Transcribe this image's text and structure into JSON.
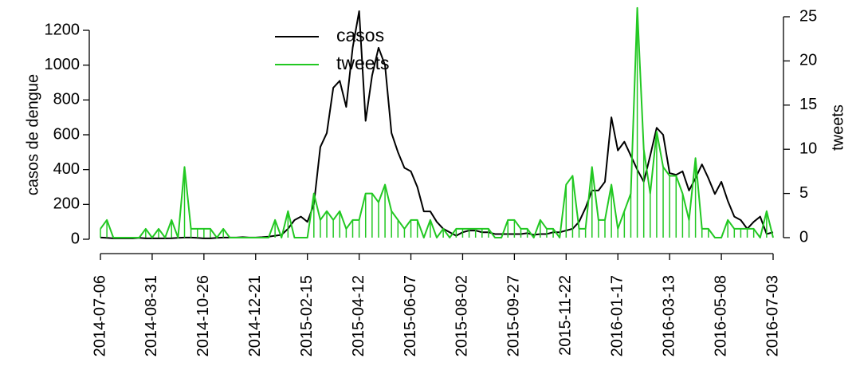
{
  "chart_data": {
    "type": "line",
    "x": [
      "2014-07-06",
      "2014-07-13",
      "2014-07-20",
      "2014-07-27",
      "2014-08-03",
      "2014-08-10",
      "2014-08-17",
      "2014-08-24",
      "2014-08-31",
      "2014-09-07",
      "2014-09-14",
      "2014-09-21",
      "2014-09-28",
      "2014-10-05",
      "2014-10-12",
      "2014-10-19",
      "2014-10-26",
      "2014-11-02",
      "2014-11-09",
      "2014-11-16",
      "2014-11-23",
      "2014-11-30",
      "2014-12-07",
      "2014-12-14",
      "2014-12-21",
      "2014-12-28",
      "2015-01-04",
      "2015-01-11",
      "2015-01-18",
      "2015-01-25",
      "2015-02-01",
      "2015-02-08",
      "2015-02-15",
      "2015-02-22",
      "2015-03-01",
      "2015-03-08",
      "2015-03-15",
      "2015-03-22",
      "2015-03-29",
      "2015-04-05",
      "2015-04-12",
      "2015-04-19",
      "2015-04-26",
      "2015-05-03",
      "2015-05-10",
      "2015-05-17",
      "2015-05-24",
      "2015-05-31",
      "2015-06-07",
      "2015-06-14",
      "2015-06-21",
      "2015-06-28",
      "2015-07-05",
      "2015-07-12",
      "2015-07-19",
      "2015-07-26",
      "2015-08-02",
      "2015-08-09",
      "2015-08-16",
      "2015-08-23",
      "2015-08-30",
      "2015-09-06",
      "2015-09-13",
      "2015-09-20",
      "2015-09-27",
      "2015-10-04",
      "2015-10-11",
      "2015-10-18",
      "2015-10-25",
      "2015-11-01",
      "2015-11-08",
      "2015-11-15",
      "2015-11-22",
      "2015-11-29",
      "2015-12-06",
      "2015-12-13",
      "2015-12-20",
      "2015-12-27",
      "2016-01-03",
      "2016-01-10",
      "2016-01-17",
      "2016-01-24",
      "2016-01-31",
      "2016-02-07",
      "2016-02-14",
      "2016-02-21",
      "2016-02-28",
      "2016-03-06",
      "2016-03-13",
      "2016-03-20",
      "2016-03-27",
      "2016-04-03",
      "2016-04-10",
      "2016-04-17",
      "2016-04-24",
      "2016-05-01",
      "2016-05-08",
      "2016-05-15",
      "2016-05-22",
      "2016-05-29",
      "2016-06-05",
      "2016-06-12",
      "2016-06-19",
      "2016-06-26",
      "2016-07-03"
    ],
    "xticks": [
      "2014-07-06",
      "2014-08-31",
      "2014-10-26",
      "2014-12-21",
      "2015-02-15",
      "2015-04-12",
      "2015-06-07",
      "2015-08-02",
      "2015-09-27",
      "2015-11-22",
      "2016-01-17",
      "2016-03-13",
      "2016-05-08",
      "2016-07-03"
    ],
    "ylabel": "casos de dengue",
    "y2label": "tweets",
    "ylim": [
      0,
      1200
    ],
    "yticks": [
      0,
      200,
      400,
      600,
      800,
      1000,
      1200
    ],
    "y2lim": [
      0,
      25
    ],
    "y2ticks": [
      0,
      5,
      10,
      15,
      20,
      25
    ],
    "legend": "top",
    "series": [
      {
        "name": "casos",
        "color": "#000000",
        "axis": "y",
        "values": [
          10,
          8,
          5,
          5,
          6,
          5,
          8,
          5,
          5,
          5,
          5,
          6,
          8,
          10,
          10,
          8,
          5,
          5,
          8,
          10,
          10,
          10,
          12,
          10,
          10,
          12,
          15,
          20,
          25,
          60,
          110,
          130,
          100,
          200,
          530,
          610,
          870,
          910,
          760,
          1100,
          1310,
          680,
          940,
          1100,
          1000,
          610,
          500,
          410,
          390,
          300,
          160,
          160,
          100,
          60,
          40,
          20,
          40,
          50,
          50,
          40,
          40,
          30,
          30,
          30,
          30,
          30,
          35,
          25,
          30,
          30,
          40,
          40,
          50,
          60,
          100,
          180,
          280,
          280,
          330,
          700,
          510,
          560,
          480,
          400,
          330,
          480,
          640,
          600,
          380,
          370,
          390,
          280,
          350,
          430,
          350,
          260,
          330,
          220,
          130,
          110,
          60,
          100,
          130,
          30,
          40
        ]
      },
      {
        "name": "tweets",
        "color": "#22c822",
        "axis": "y2",
        "values": [
          1,
          2,
          0,
          0,
          0,
          0,
          0,
          1,
          0,
          1,
          0,
          2,
          0,
          8,
          1,
          1,
          1,
          1,
          0,
          1,
          0,
          0,
          0,
          0,
          0,
          0,
          0,
          2,
          0,
          3,
          0,
          0,
          0,
          5,
          2,
          3,
          2,
          3,
          1,
          2,
          2,
          5,
          5,
          4,
          6,
          3,
          2,
          1,
          2,
          2,
          0,
          2,
          0,
          1,
          0,
          1,
          1,
          1,
          1,
          1,
          1,
          0,
          0,
          2,
          2,
          1,
          1,
          0,
          2,
          1,
          1,
          0,
          6,
          7,
          1,
          1,
          8,
          2,
          2,
          6,
          1,
          3,
          5,
          26,
          10,
          5,
          12,
          8,
          7,
          7,
          5,
          2,
          9,
          1,
          1,
          0,
          0,
          2,
          1,
          1,
          1,
          1,
          0,
          3,
          0
        ]
      }
    ]
  }
}
